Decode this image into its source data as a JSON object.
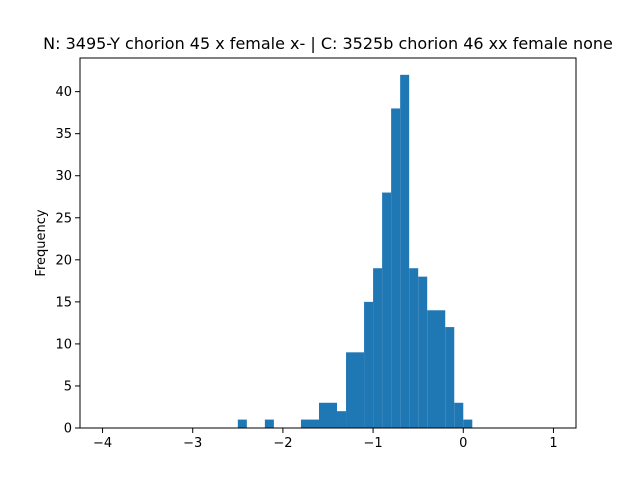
{
  "chart_data": {
    "type": "bar",
    "subtype": "histogram",
    "title": "N: 3495-Y chorion 45 x female x- | C: 3525b chorion 46 xx female none",
    "xlabel": "",
    "ylabel": "Frequency",
    "xlim": [
      -4.25,
      1.25
    ],
    "ylim": [
      0,
      44
    ],
    "grid": false,
    "bar_color": "#1f77b4",
    "x_ticks": [
      {
        "value": -4,
        "label": "−4"
      },
      {
        "value": -3,
        "label": "−3"
      },
      {
        "value": -2,
        "label": "−2"
      },
      {
        "value": -1,
        "label": "−1"
      },
      {
        "value": 0,
        "label": "0"
      },
      {
        "value": 1,
        "label": "1"
      }
    ],
    "y_ticks": [
      {
        "value": 0,
        "label": "0"
      },
      {
        "value": 5,
        "label": "5"
      },
      {
        "value": 10,
        "label": "10"
      },
      {
        "value": 15,
        "label": "15"
      },
      {
        "value": 20,
        "label": "20"
      },
      {
        "value": 25,
        "label": "25"
      },
      {
        "value": 30,
        "label": "30"
      },
      {
        "value": 35,
        "label": "35"
      },
      {
        "value": 40,
        "label": "40"
      }
    ],
    "bins": [
      {
        "x0": -2.5,
        "x1": -2.4,
        "count": 1
      },
      {
        "x0": -2.2,
        "x1": -2.1,
        "count": 1
      },
      {
        "x0": -1.8,
        "x1": -1.6,
        "count": 1
      },
      {
        "x0": -1.6,
        "x1": -1.4,
        "count": 3
      },
      {
        "x0": -1.4,
        "x1": -1.3,
        "count": 2
      },
      {
        "x0": -1.3,
        "x1": -1.1,
        "count": 9
      },
      {
        "x0": -1.1,
        "x1": -1.0,
        "count": 15
      },
      {
        "x0": -1.0,
        "x1": -0.9,
        "count": 19
      },
      {
        "x0": -0.9,
        "x1": -0.8,
        "count": 28
      },
      {
        "x0": -0.8,
        "x1": -0.7,
        "count": 38
      },
      {
        "x0": -0.7,
        "x1": -0.6,
        "count": 42
      },
      {
        "x0": -0.6,
        "x1": -0.5,
        "count": 19
      },
      {
        "x0": -0.5,
        "x1": -0.4,
        "count": 18
      },
      {
        "x0": -0.4,
        "x1": -0.2,
        "count": 14
      },
      {
        "x0": -0.2,
        "x1": -0.1,
        "count": 12
      },
      {
        "x0": -0.1,
        "x1": 0.0,
        "count": 3
      },
      {
        "x0": 0.0,
        "x1": 0.1,
        "count": 1
      }
    ]
  }
}
